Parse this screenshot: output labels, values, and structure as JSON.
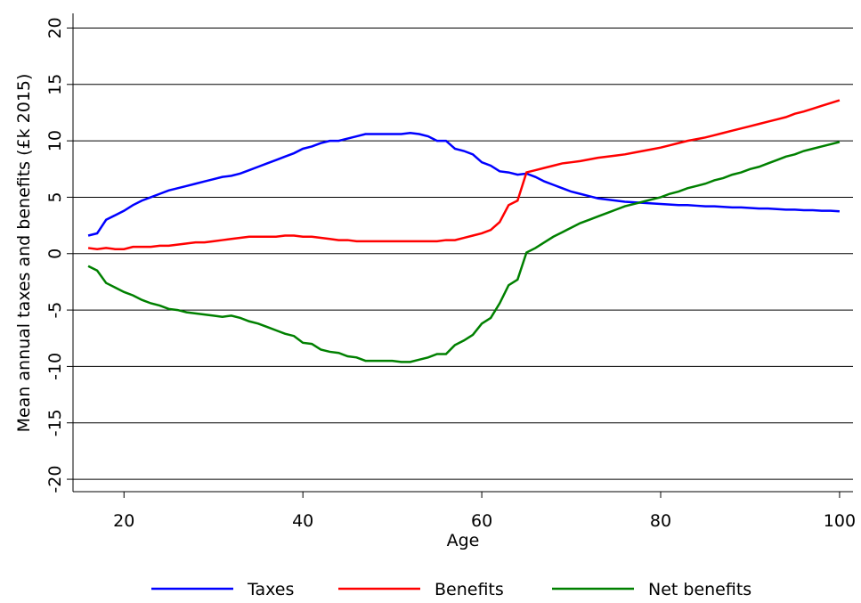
{
  "chart_data": {
    "type": "line",
    "x_label": "Age",
    "y_label": "Mean annual taxes and benefits (£k 2015)",
    "x": [
      16,
      17,
      18,
      19,
      20,
      21,
      22,
      23,
      24,
      25,
      26,
      27,
      28,
      29,
      30,
      31,
      32,
      33,
      34,
      35,
      36,
      37,
      38,
      39,
      40,
      41,
      42,
      43,
      44,
      45,
      46,
      47,
      48,
      49,
      50,
      51,
      52,
      53,
      54,
      55,
      56,
      57,
      58,
      59,
      60,
      61,
      62,
      63,
      64,
      65,
      66,
      67,
      68,
      69,
      70,
      71,
      72,
      73,
      74,
      75,
      76,
      77,
      78,
      79,
      80,
      81,
      82,
      83,
      84,
      85,
      86,
      87,
      88,
      89,
      90,
      91,
      92,
      93,
      94,
      95,
      96,
      97,
      98,
      99,
      100
    ],
    "series": [
      {
        "name": "Taxes",
        "color": "#0000ff",
        "values": [
          1.6,
          1.8,
          3.0,
          3.4,
          3.8,
          4.3,
          4.7,
          5.0,
          5.3,
          5.6,
          5.8,
          6.0,
          6.2,
          6.4,
          6.6,
          6.8,
          6.9,
          7.1,
          7.4,
          7.7,
          8.0,
          8.3,
          8.6,
          8.9,
          9.3,
          9.5,
          9.8,
          10.0,
          10.0,
          10.2,
          10.4,
          10.6,
          10.6,
          10.6,
          10.6,
          10.6,
          10.7,
          10.6,
          10.4,
          10.0,
          10.0,
          9.3,
          9.1,
          8.8,
          8.1,
          7.8,
          7.3,
          7.2,
          7.0,
          7.1,
          6.8,
          6.4,
          6.1,
          5.8,
          5.5,
          5.3,
          5.1,
          4.9,
          4.8,
          4.7,
          4.6,
          4.55,
          4.5,
          4.45,
          4.4,
          4.35,
          4.3,
          4.3,
          4.25,
          4.2,
          4.2,
          4.15,
          4.1,
          4.1,
          4.05,
          4.0,
          4.0,
          3.95,
          3.9,
          3.9,
          3.85,
          3.85,
          3.8,
          3.8,
          3.75
        ]
      },
      {
        "name": "Benefits",
        "color": "#ff0000",
        "values": [
          0.5,
          0.4,
          0.5,
          0.4,
          0.4,
          0.6,
          0.6,
          0.6,
          0.7,
          0.7,
          0.8,
          0.9,
          1.0,
          1.0,
          1.1,
          1.2,
          1.3,
          1.4,
          1.5,
          1.5,
          1.5,
          1.5,
          1.6,
          1.6,
          1.5,
          1.5,
          1.4,
          1.3,
          1.2,
          1.2,
          1.1,
          1.1,
          1.1,
          1.1,
          1.1,
          1.1,
          1.1,
          1.1,
          1.1,
          1.1,
          1.2,
          1.2,
          1.4,
          1.6,
          1.8,
          2.1,
          2.8,
          4.3,
          4.7,
          7.2,
          7.4,
          7.6,
          7.8,
          8.0,
          8.1,
          8.2,
          8.35,
          8.5,
          8.6,
          8.7,
          8.8,
          8.95,
          9.1,
          9.25,
          9.4,
          9.6,
          9.8,
          10.0,
          10.15,
          10.3,
          10.5,
          10.7,
          10.9,
          11.1,
          11.3,
          11.5,
          11.7,
          11.9,
          12.1,
          12.4,
          12.6,
          12.85,
          13.1,
          13.35,
          13.6
        ]
      },
      {
        "name": "Net benefits",
        "color": "#008000",
        "values": [
          -1.1,
          -1.5,
          -2.6,
          -3.0,
          -3.4,
          -3.7,
          -4.1,
          -4.4,
          -4.6,
          -4.9,
          -5.0,
          -5.2,
          -5.3,
          -5.4,
          -5.5,
          -5.6,
          -5.5,
          -5.7,
          -6.0,
          -6.2,
          -6.5,
          -6.8,
          -7.1,
          -7.3,
          -7.9,
          -8.0,
          -8.5,
          -8.7,
          -8.8,
          -9.1,
          -9.2,
          -9.5,
          -9.5,
          -9.5,
          -9.5,
          -9.6,
          -9.6,
          -9.4,
          -9.2,
          -8.9,
          -8.9,
          -8.1,
          -7.7,
          -7.2,
          -6.2,
          -5.7,
          -4.4,
          -2.8,
          -2.3,
          0.1,
          0.5,
          1.0,
          1.5,
          1.9,
          2.3,
          2.7,
          3.0,
          3.3,
          3.6,
          3.9,
          4.2,
          4.4,
          4.6,
          4.8,
          5.0,
          5.3,
          5.5,
          5.8,
          6.0,
          6.2,
          6.5,
          6.7,
          7.0,
          7.2,
          7.5,
          7.7,
          8.0,
          8.3,
          8.6,
          8.8,
          9.1,
          9.3,
          9.5,
          9.7,
          9.9
        ]
      }
    ],
    "xlim": [
      14.3,
      101.5
    ],
    "ylim": [
      -21.1,
      21.3
    ],
    "xticks": [
      20,
      40,
      60,
      80,
      100
    ],
    "yticks": [
      -20,
      -15,
      -10,
      -5,
      0,
      5,
      10,
      15,
      20
    ],
    "grid": true,
    "legend": "bottom"
  }
}
